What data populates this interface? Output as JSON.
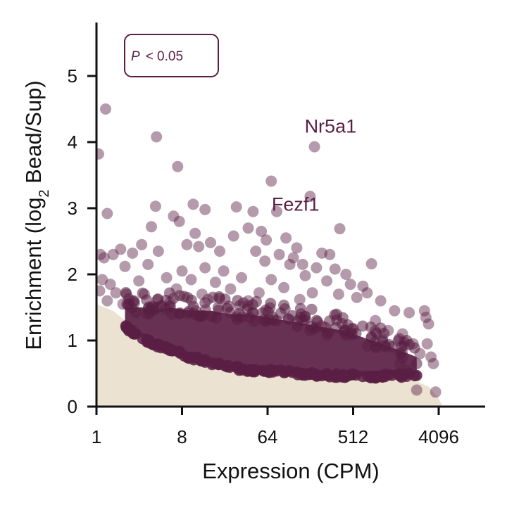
{
  "chart_data": {
    "type": "scatter",
    "x_scale": "log2",
    "xlabel": "Expression (CPM)",
    "ylabel_main": "Enrichment (log",
    "ylabel_sub": "2",
    "ylabel_tail": " Bead/Sup)",
    "x_ticks": [
      {
        "value": 1,
        "label": "1"
      },
      {
        "value": 8,
        "label": "8"
      },
      {
        "value": 64,
        "label": "64"
      },
      {
        "value": 512,
        "label": "512"
      },
      {
        "value": 4096,
        "label": "4096"
      }
    ],
    "y_ticks": [
      {
        "value": 0,
        "label": "0"
      },
      {
        "value": 1,
        "label": "1"
      },
      {
        "value": 2,
        "label": "2"
      },
      {
        "value": 3,
        "label": "3"
      },
      {
        "value": 4,
        "label": "4"
      },
      {
        "value": 5,
        "label": "5"
      }
    ],
    "xlim": [
      1,
      16384
    ],
    "ylim": [
      0,
      5.8
    ],
    "grid": false,
    "legend": {
      "position": "top-left",
      "symbol": "P",
      "text": "< 0.05"
    },
    "colors": {
      "significant": "#5a1f44",
      "nonsignificant": "#ebe2d2"
    },
    "annotations": [
      {
        "label": "Nr5a1",
        "x": 200,
        "y": 3.93
      },
      {
        "label": "Fezf1",
        "x": 90,
        "y": 2.75
      }
    ],
    "series": [
      {
        "name": "P < 0.05",
        "color": "#5a1f44",
        "points": [
          [
            1.05,
            3.82
          ],
          [
            1.25,
            4.5
          ],
          [
            4.3,
            4.08
          ],
          [
            7.2,
            3.63
          ],
          [
            200,
            3.93
          ],
          [
            70,
            3.41
          ],
          [
            180,
            3.18
          ],
          [
            370,
            2.69
          ],
          [
            80,
            2.95
          ],
          [
            45,
            2.95
          ],
          [
            30,
            3.02
          ],
          [
            14,
            2.98
          ],
          [
            10.5,
            3.06
          ],
          [
            4.2,
            3.03
          ],
          [
            1.3,
            2.92
          ],
          [
            6.5,
            2.88
          ],
          [
            7.5,
            2.8
          ],
          [
            3.8,
            2.72
          ],
          [
            11,
            2.62
          ],
          [
            40,
            2.7
          ],
          [
            55,
            2.65
          ],
          [
            28,
            2.58
          ],
          [
            16,
            2.48
          ],
          [
            12,
            2.42
          ],
          [
            62,
            2.52
          ],
          [
            100,
            2.55
          ],
          [
            130,
            2.4
          ],
          [
            150,
            2.15
          ],
          [
            1.1,
            2.3
          ],
          [
            1.2,
            2.25
          ],
          [
            1.5,
            2.3
          ],
          [
            1.8,
            2.38
          ],
          [
            2.4,
            2.32
          ],
          [
            3.0,
            2.45
          ],
          [
            4.5,
            2.35
          ],
          [
            9.0,
            2.45
          ],
          [
            20,
            2.35
          ],
          [
            48,
            2.35
          ],
          [
            85,
            2.3
          ],
          [
            120,
            2.25
          ],
          [
            240,
            2.32
          ],
          [
            290,
            2.3
          ],
          [
            800,
            2.16
          ],
          [
            2.0,
            2.12
          ],
          [
            3.5,
            2.15
          ],
          [
            8,
            2.05
          ],
          [
            14,
            2.1
          ],
          [
            22,
            2.05
          ],
          [
            60,
            2.2
          ],
          [
            110,
            2.15
          ],
          [
            210,
            2.1
          ],
          [
            330,
            2.08
          ],
          [
            430,
            2.0
          ],
          [
            1.15,
            1.92
          ],
          [
            1.4,
            1.85
          ],
          [
            2.8,
            1.9
          ],
          [
            5.5,
            1.95
          ],
          [
            10,
            1.92
          ],
          [
            18,
            1.88
          ],
          [
            34,
            1.95
          ],
          [
            70,
            1.92
          ],
          [
            160,
            1.98
          ],
          [
            270,
            1.9
          ],
          [
            480,
            1.85
          ],
          [
            650,
            1.82
          ],
          [
            1.08,
            1.75
          ],
          [
            1.6,
            1.72
          ],
          [
            3.2,
            1.7
          ],
          [
            7,
            1.78
          ],
          [
            13,
            1.7
          ],
          [
            26,
            1.78
          ],
          [
            52,
            1.72
          ],
          [
            95,
            1.8
          ],
          [
            190,
            1.72
          ],
          [
            360,
            1.7
          ],
          [
            560,
            1.65
          ],
          [
            720,
            1.72
          ],
          [
            1000,
            1.6
          ],
          [
            1400,
            1.45
          ],
          [
            2000,
            1.42
          ],
          [
            2900,
            1.45
          ],
          [
            3000,
            1.35
          ],
          [
            3200,
            1.25
          ],
          [
            3400,
            0.75
          ],
          [
            3600,
            0.65
          ],
          [
            3800,
            0.22
          ],
          [
            2400,
            0.25
          ],
          [
            1.3,
            1.6
          ],
          [
            1.9,
            1.55
          ],
          [
            2.5,
            1.6
          ],
          [
            6,
            1.58
          ],
          [
            15,
            1.62
          ],
          [
            40,
            1.6
          ],
          [
            140,
            1.62
          ],
          [
            880,
            1.3
          ],
          [
            1200,
            1.15
          ],
          [
            1700,
            1.1
          ],
          [
            2200,
            0.95
          ],
          [
            2600,
            0.8
          ],
          [
            3100,
            0.95
          ],
          [
            1600,
            0.65
          ],
          [
            1900,
            0.55
          ]
        ]
      }
    ],
    "dense_band": [
      [
        2.0,
        1.2,
        1.5
      ],
      [
        3.0,
        1.05,
        1.5
      ],
      [
        4.0,
        0.95,
        1.45
      ],
      [
        6.0,
        0.85,
        1.5
      ],
      [
        10,
        0.75,
        1.45
      ],
      [
        16,
        0.66,
        1.45
      ],
      [
        25,
        0.6,
        1.4
      ],
      [
        40,
        0.56,
        1.4
      ],
      [
        64,
        0.54,
        1.35
      ],
      [
        100,
        0.52,
        1.3
      ],
      [
        160,
        0.5,
        1.25
      ],
      [
        250,
        0.48,
        1.2
      ],
      [
        400,
        0.47,
        1.15
      ],
      [
        640,
        0.46,
        1.05
      ],
      [
        1000,
        0.46,
        0.95
      ],
      [
        1600,
        0.47,
        0.85
      ],
      [
        2400,
        0.5,
        0.75
      ]
    ],
    "background_band": [
      [
        1.0,
        1.55
      ],
      [
        1.5,
        1.45
      ],
      [
        2.0,
        1.3
      ],
      [
        3.0,
        1.12
      ],
      [
        4.0,
        1.0
      ],
      [
        6.0,
        0.9
      ],
      [
        8.0,
        0.82
      ],
      [
        12,
        0.74
      ],
      [
        16,
        0.68
      ],
      [
        25,
        0.62
      ],
      [
        40,
        0.57
      ],
      [
        64,
        0.53
      ],
      [
        100,
        0.5
      ],
      [
        160,
        0.47
      ],
      [
        250,
        0.45
      ],
      [
        400,
        0.43
      ],
      [
        640,
        0.42
      ],
      [
        1000,
        0.41
      ],
      [
        1600,
        0.4
      ],
      [
        2400,
        0.38
      ],
      [
        3200,
        0.3
      ],
      [
        4000,
        0.15
      ],
      [
        4500,
        0.0
      ]
    ]
  }
}
